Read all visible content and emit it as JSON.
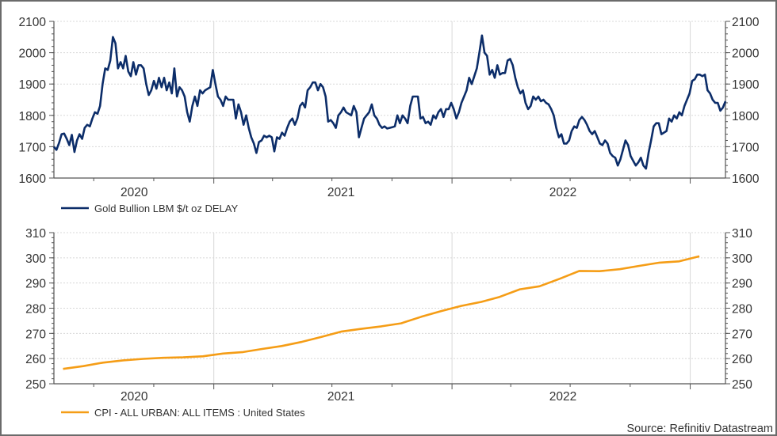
{
  "colors": {
    "gold": "#0c2d69",
    "cpi": "#f59d16",
    "grid": "#d8d8d8",
    "axis": "#555555",
    "frame": "#6b6b6b"
  },
  "source": "Source: Refinitiv Datastream",
  "chart_data": [
    {
      "type": "line",
      "title": "",
      "xlabel": "",
      "ylabel": "",
      "xlim": [
        "2020-05-01",
        "2023-02-24"
      ],
      "ylim": [
        1600,
        2100
      ],
      "yticks": [
        1600,
        1700,
        1800,
        1900,
        2000,
        2100
      ],
      "y_axis_both_sides": true,
      "grid": true,
      "xgrid": [
        "2021-01-01",
        "2022-01-01",
        "2023-01-01"
      ],
      "xminor": [
        "2020-07-01",
        "2020-10-01",
        "2021-04-01",
        "2021-07-01",
        "2021-10-01",
        "2022-04-01",
        "2022-07-01",
        "2022-10-01"
      ],
      "xtick_labels": [
        {
          "label": "2020",
          "at": "2020-09-01"
        },
        {
          "label": "2021",
          "at": "2021-07-15"
        },
        {
          "label": "2022",
          "at": "2022-06-20"
        }
      ],
      "legend": "bottom-left",
      "series": [
        {
          "name": "Gold Bullion LBM $/t oz DELAY",
          "color": "#0c2d69",
          "start": "2020-05-01",
          "end": "2023-02-24",
          "spacing": "even",
          "values": [
            1700,
            1690,
            1712,
            1740,
            1742,
            1725,
            1705,
            1738,
            1683,
            1720,
            1740,
            1725,
            1760,
            1770,
            1765,
            1790,
            1810,
            1805,
            1830,
            1900,
            1950,
            1945,
            1975,
            2050,
            2030,
            1950,
            1970,
            1950,
            1990,
            1940,
            1925,
            1970,
            1930,
            1960,
            1960,
            1950,
            1900,
            1865,
            1880,
            1910,
            1885,
            1920,
            1890,
            1920,
            1880,
            1905,
            1870,
            1950,
            1860,
            1890,
            1880,
            1860,
            1810,
            1780,
            1830,
            1860,
            1830,
            1880,
            1870,
            1880,
            1885,
            1890,
            1945,
            1900,
            1860,
            1850,
            1830,
            1860,
            1850,
            1850,
            1850,
            1790,
            1835,
            1810,
            1770,
            1800,
            1760,
            1730,
            1710,
            1680,
            1715,
            1720,
            1735,
            1730,
            1735,
            1730,
            1685,
            1730,
            1725,
            1745,
            1735,
            1760,
            1780,
            1790,
            1770,
            1790,
            1830,
            1840,
            1825,
            1880,
            1890,
            1905,
            1905,
            1880,
            1900,
            1890,
            1860,
            1780,
            1785,
            1775,
            1760,
            1800,
            1810,
            1825,
            1810,
            1805,
            1800,
            1830,
            1810,
            1730,
            1760,
            1790,
            1800,
            1810,
            1835,
            1800,
            1790,
            1770,
            1760,
            1765,
            1758,
            1760,
            1762,
            1765,
            1800,
            1775,
            1800,
            1790,
            1775,
            1830,
            1860,
            1860,
            1860,
            1790,
            1795,
            1775,
            1780,
            1770,
            1800,
            1790,
            1810,
            1820,
            1795,
            1820,
            1820,
            1840,
            1820,
            1790,
            1810,
            1840,
            1860,
            1880,
            1920,
            1900,
            1925,
            1950,
            2000,
            2055,
            2000,
            1990,
            1930,
            1945,
            1920,
            1960,
            1930,
            1935,
            1935,
            1975,
            1980,
            1960,
            1920,
            1890,
            1870,
            1880,
            1840,
            1820,
            1830,
            1860,
            1850,
            1860,
            1845,
            1850,
            1840,
            1835,
            1820,
            1800,
            1760,
            1730,
            1740,
            1710,
            1710,
            1720,
            1750,
            1765,
            1760,
            1785,
            1795,
            1785,
            1770,
            1750,
            1740,
            1750,
            1730,
            1710,
            1705,
            1720,
            1710,
            1680,
            1670,
            1665,
            1640,
            1660,
            1690,
            1720,
            1705,
            1670,
            1655,
            1640,
            1650,
            1665,
            1640,
            1630,
            1680,
            1720,
            1765,
            1775,
            1775,
            1740,
            1745,
            1750,
            1790,
            1780,
            1800,
            1790,
            1810,
            1800,
            1830,
            1850,
            1870,
            1910,
            1915,
            1930,
            1930,
            1925,
            1930,
            1880,
            1870,
            1850,
            1840,
            1840,
            1815,
            1825,
            1845
          ]
        }
      ]
    },
    {
      "type": "line",
      "title": "",
      "xlabel": "",
      "ylabel": "",
      "xlim": [
        "2020-05-01",
        "2023-02-24"
      ],
      "ylim": [
        250,
        310
      ],
      "yticks": [
        250,
        260,
        270,
        280,
        290,
        300,
        310
      ],
      "y_axis_both_sides": true,
      "grid": true,
      "xgrid": [
        "2021-01-01",
        "2022-01-01",
        "2023-01-01"
      ],
      "xminor": [
        "2020-07-01",
        "2020-10-01",
        "2021-04-01",
        "2021-07-01",
        "2021-10-01",
        "2022-04-01",
        "2022-07-01",
        "2022-10-01"
      ],
      "xtick_labels": [
        {
          "label": "2020",
          "at": "2020-09-01"
        },
        {
          "label": "2021",
          "at": "2021-07-15"
        },
        {
          "label": "2022",
          "at": "2022-06-20"
        }
      ],
      "legend": "bottom-left",
      "series": [
        {
          "name": "CPI - ALL URBAN: ALL ITEMS : United States",
          "color": "#f59d16",
          "x": [
            "2020-05",
            "2020-06",
            "2020-07",
            "2020-08",
            "2020-09",
            "2020-10",
            "2020-11",
            "2020-12",
            "2021-01",
            "2021-02",
            "2021-03",
            "2021-04",
            "2021-05",
            "2021-06",
            "2021-07",
            "2021-08",
            "2021-09",
            "2021-10",
            "2021-11",
            "2021-12",
            "2022-01",
            "2022-02",
            "2022-03",
            "2022-04",
            "2022-05",
            "2022-06",
            "2022-07",
            "2022-08",
            "2022-09",
            "2022-10",
            "2022-11",
            "2022-12",
            "2023-01"
          ],
          "values": [
            255.9,
            257.0,
            258.4,
            259.3,
            259.9,
            260.3,
            260.5,
            260.9,
            262.0,
            262.6,
            263.8,
            265.0,
            266.6,
            268.6,
            270.7,
            271.8,
            272.8,
            274.0,
            276.6,
            278.8,
            280.9,
            282.5,
            284.5,
            287.5,
            288.7,
            291.7,
            294.8,
            294.7,
            295.5,
            296.8,
            298.1,
            298.6,
            300.6
          ]
        }
      ]
    }
  ]
}
